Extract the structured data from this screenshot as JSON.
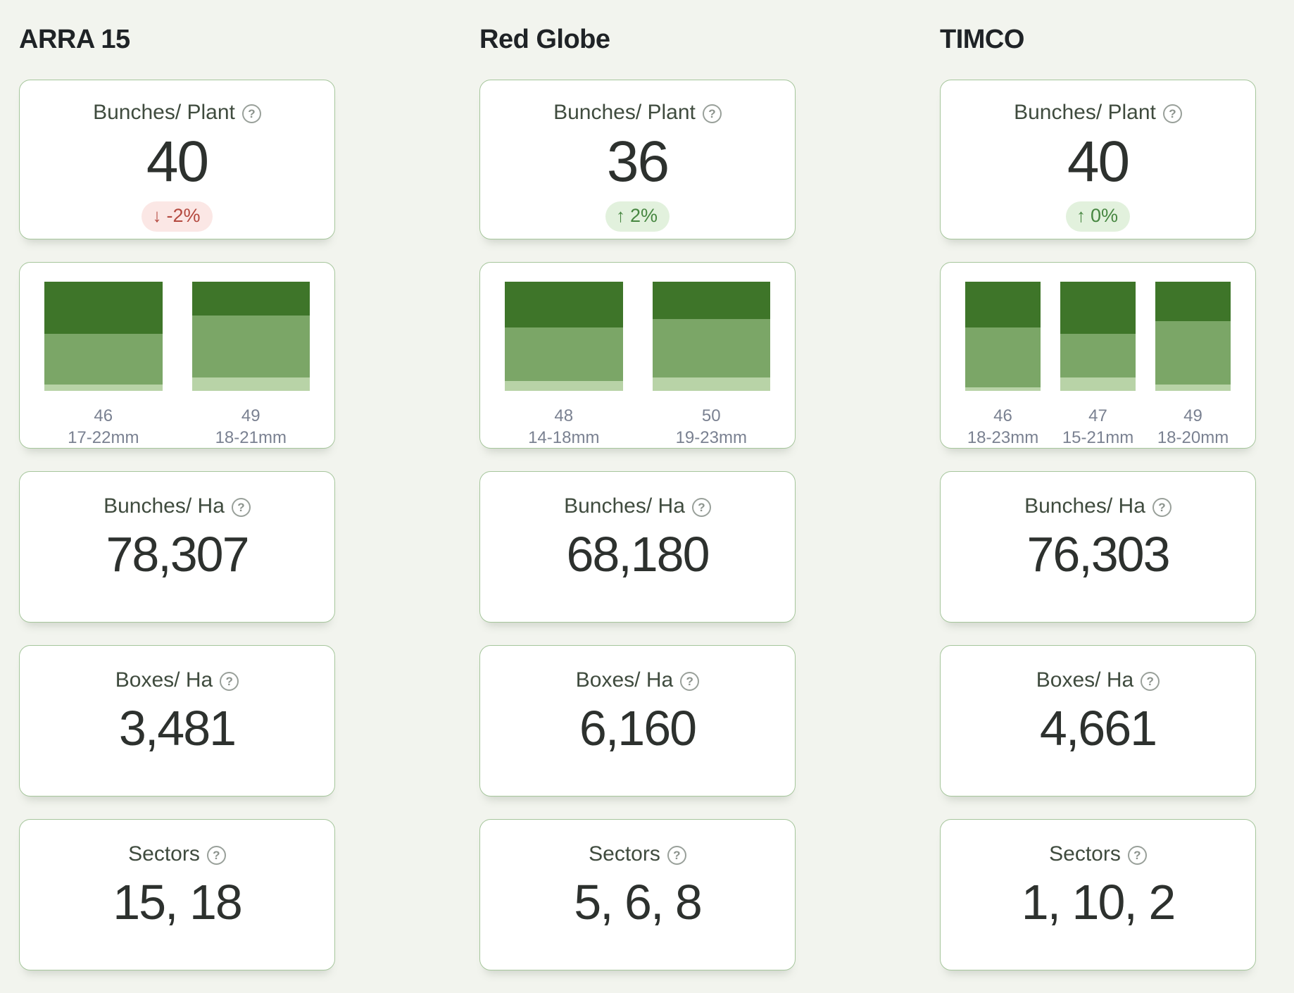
{
  "help_glyph": "?",
  "colors": {
    "page_background": "#f2f4ee",
    "card_border": "#a6c69c",
    "badge_down_bg": "#fbe7e5",
    "badge_down_text": "#b4493f",
    "badge_up_bg": "#e2f1dd",
    "badge_up_text": "#478741",
    "bar_segments": {
      "dark": "#3e7529",
      "medium": "#7ba667",
      "light": "#b8d3a7"
    }
  },
  "columns": [
    {
      "title": "ARRA 15",
      "bunches_per_plant": {
        "label": "Bunches/ Plant",
        "value": "40",
        "change": {
          "direction": "down",
          "arrow": "↓",
          "text": "-2%"
        }
      },
      "size_chart": {
        "type": "stacked-bar",
        "bars": [
          {
            "value": "46",
            "range": "17-22mm",
            "segments": [
              {
                "tone": "dark",
                "pct": 48
              },
              {
                "tone": "medium",
                "pct": 46
              },
              {
                "tone": "light",
                "pct": 6
              }
            ]
          },
          {
            "value": "49",
            "range": "18-21mm",
            "segments": [
              {
                "tone": "dark",
                "pct": 31
              },
              {
                "tone": "medium",
                "pct": 57
              },
              {
                "tone": "light",
                "pct": 12
              }
            ]
          }
        ]
      },
      "bunches_per_ha": {
        "label": "Bunches/ Ha",
        "value": "78,307"
      },
      "boxes_per_ha": {
        "label": "Boxes/ Ha",
        "value": "3,481"
      },
      "sectors": {
        "label": "Sectors",
        "value": "15, 18"
      }
    },
    {
      "title": "Red Globe",
      "bunches_per_plant": {
        "label": "Bunches/ Plant",
        "value": "36",
        "change": {
          "direction": "up",
          "arrow": "↑",
          "text": "2%"
        }
      },
      "size_chart": {
        "type": "stacked-bar",
        "bars": [
          {
            "value": "48",
            "range": "14-18mm",
            "segments": [
              {
                "tone": "dark",
                "pct": 42
              },
              {
                "tone": "medium",
                "pct": 49
              },
              {
                "tone": "light",
                "pct": 9
              }
            ]
          },
          {
            "value": "50",
            "range": "19-23mm",
            "segments": [
              {
                "tone": "dark",
                "pct": 34
              },
              {
                "tone": "medium",
                "pct": 54
              },
              {
                "tone": "light",
                "pct": 12
              }
            ]
          }
        ]
      },
      "bunches_per_ha": {
        "label": "Bunches/ Ha",
        "value": "68,180"
      },
      "boxes_per_ha": {
        "label": "Boxes/ Ha",
        "value": "6,160"
      },
      "sectors": {
        "label": "Sectors",
        "value": "5, 6, 8"
      }
    },
    {
      "title": "TIMCO",
      "bunches_per_plant": {
        "label": "Bunches/ Plant",
        "value": "40",
        "change": {
          "direction": "up",
          "arrow": "↑",
          "text": "0%"
        }
      },
      "size_chart": {
        "type": "stacked-bar",
        "bars": [
          {
            "value": "46",
            "range": "18-23mm",
            "segments": [
              {
                "tone": "dark",
                "pct": 42
              },
              {
                "tone": "medium",
                "pct": 55
              },
              {
                "tone": "light",
                "pct": 3
              }
            ]
          },
          {
            "value": "47",
            "range": "15-21mm",
            "segments": [
              {
                "tone": "dark",
                "pct": 48
              },
              {
                "tone": "medium",
                "pct": 40
              },
              {
                "tone": "light",
                "pct": 12
              }
            ]
          },
          {
            "value": "49",
            "range": "18-20mm",
            "segments": [
              {
                "tone": "dark",
                "pct": 36
              },
              {
                "tone": "medium",
                "pct": 58
              },
              {
                "tone": "light",
                "pct": 6
              }
            ]
          }
        ]
      },
      "bunches_per_ha": {
        "label": "Bunches/ Ha",
        "value": "76,303"
      },
      "boxes_per_ha": {
        "label": "Boxes/ Ha",
        "value": "4,661"
      },
      "sectors": {
        "label": "Sectors",
        "value": "1, 10, 2"
      }
    }
  ]
}
